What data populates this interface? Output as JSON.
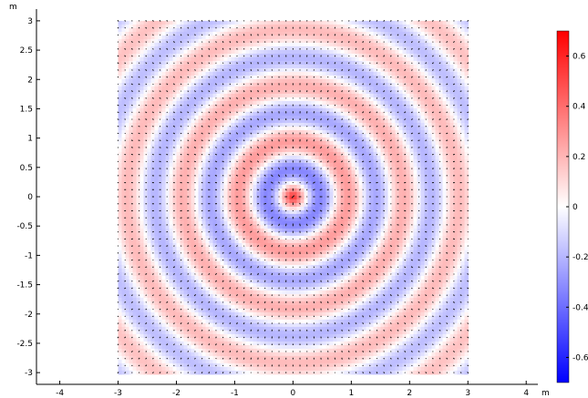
{
  "chart_data": {
    "type": "heatmap",
    "title": "",
    "xlabel": "",
    "ylabel": "",
    "x_unit": "m",
    "y_unit": "m",
    "xlim": [
      -4.4,
      4.2
    ],
    "ylim": [
      -3.2,
      3.2
    ],
    "x_ticks": [
      -4,
      -3,
      -2,
      -1,
      0,
      1,
      2,
      3,
      4
    ],
    "y_ticks": [
      -3,
      -2.5,
      -2,
      -1.5,
      -1,
      -0.5,
      0,
      0.5,
      1,
      1.5,
      2,
      2.5,
      3
    ],
    "x_tick_labels": [
      "-4",
      "-3",
      "-2",
      "-1",
      "0",
      "1",
      "2",
      "3",
      "4"
    ],
    "y_tick_labels": [
      "-3",
      "-2.5",
      "-2",
      "-1.5",
      "-1",
      "-0.5",
      "0",
      "0.5",
      "1",
      "1.5",
      "2",
      "2.5",
      "3"
    ],
    "domain": {
      "x": [
        -3,
        3
      ],
      "y": [
        -3,
        3
      ]
    },
    "field": {
      "description_shape": "concentric radial wave centered at origin with arrow quiver",
      "center": [
        0,
        0
      ],
      "peak_value": 0.68,
      "min_value": -0.68
    },
    "colorbar": {
      "range": [
        -0.7,
        0.7
      ],
      "ticks": [
        -0.6,
        -0.4,
        -0.2,
        0,
        0.2,
        0.4,
        0.6
      ],
      "tick_labels": [
        "-0.6",
        "-0.4",
        "-0.2",
        "0",
        "0.2",
        "0.4",
        "0.6"
      ],
      "colors": {
        "min": "#0000ff",
        "mid": "#ffffff",
        "max": "#ff0000"
      }
    },
    "grid": false,
    "legend": "right"
  }
}
